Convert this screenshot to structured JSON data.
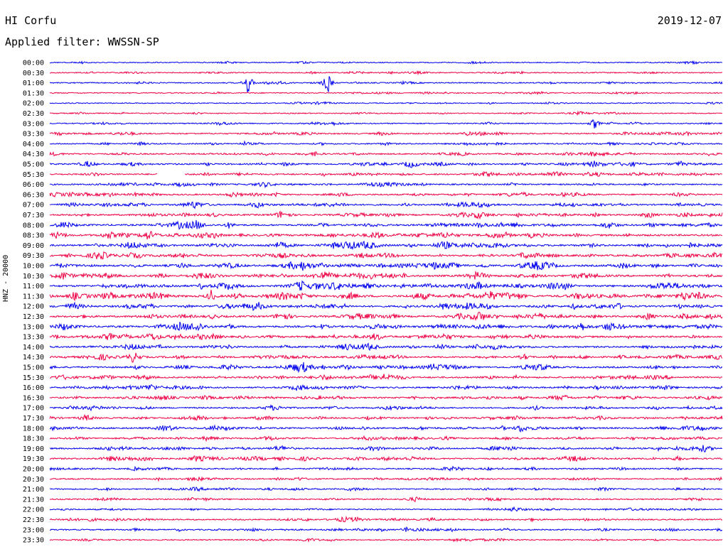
{
  "header": {
    "station": "HI Corfu",
    "date": "2019-12-07",
    "filter_label": "Applied filter: WWSSN-SP"
  },
  "chart_data": {
    "type": "line",
    "title": "HI Corfu",
    "ylabel": "HNZ - 20000",
    "row_labels": [
      "00:00",
      "00:30",
      "01:00",
      "01:30",
      "02:00",
      "02:30",
      "03:00",
      "03:30",
      "04:00",
      "04:30",
      "05:00",
      "05:30",
      "06:00",
      "06:30",
      "07:00",
      "07:30",
      "08:00",
      "08:30",
      "09:00",
      "09:30",
      "10:00",
      "10:30",
      "11:00",
      "11:30",
      "12:00",
      "12:30",
      "13:00",
      "13:30",
      "14:00",
      "14:30",
      "15:00",
      "15:30",
      "16:00",
      "16:30",
      "17:00",
      "17:30",
      "18:00",
      "18:30",
      "19:00",
      "19:30",
      "20:00",
      "20:30",
      "21:00",
      "21:30",
      "22:00",
      "22:30",
      "23:00",
      "23:30"
    ],
    "trace_colors": [
      "#0000ee",
      "#ee0044"
    ],
    "activity": [
      0.08,
      0.12,
      0.15,
      0.1,
      0.05,
      0.08,
      0.15,
      0.3,
      0.25,
      0.35,
      0.45,
      0.4,
      0.35,
      0.4,
      0.45,
      0.5,
      0.6,
      0.65,
      0.7,
      0.65,
      0.65,
      0.7,
      0.75,
      0.85,
      0.65,
      0.65,
      0.7,
      0.6,
      0.55,
      0.55,
      0.55,
      0.5,
      0.45,
      0.45,
      0.4,
      0.4,
      0.45,
      0.35,
      0.45,
      0.45,
      0.3,
      0.25,
      0.25,
      0.25,
      0.2,
      0.25,
      0.25,
      0.15
    ],
    "events": [
      {
        "row": 2,
        "t": 0.295,
        "amp": 3.5
      },
      {
        "row": 2,
        "t": 0.413,
        "amp": 3.5
      },
      {
        "row": 6,
        "t": 0.81,
        "amp": 1.8
      },
      {
        "row": 23,
        "t": 0.24,
        "amp": 1.8
      },
      {
        "row": 29,
        "t": 0.125,
        "amp": 1.2
      },
      {
        "row": 36,
        "t": 0.7,
        "amp": 1.0
      },
      {
        "row": 46,
        "t": 0.53,
        "amp": 0.8
      }
    ],
    "gaps": [
      {
        "row": 11,
        "t0": 0.16,
        "t1": 0.2
      }
    ]
  }
}
